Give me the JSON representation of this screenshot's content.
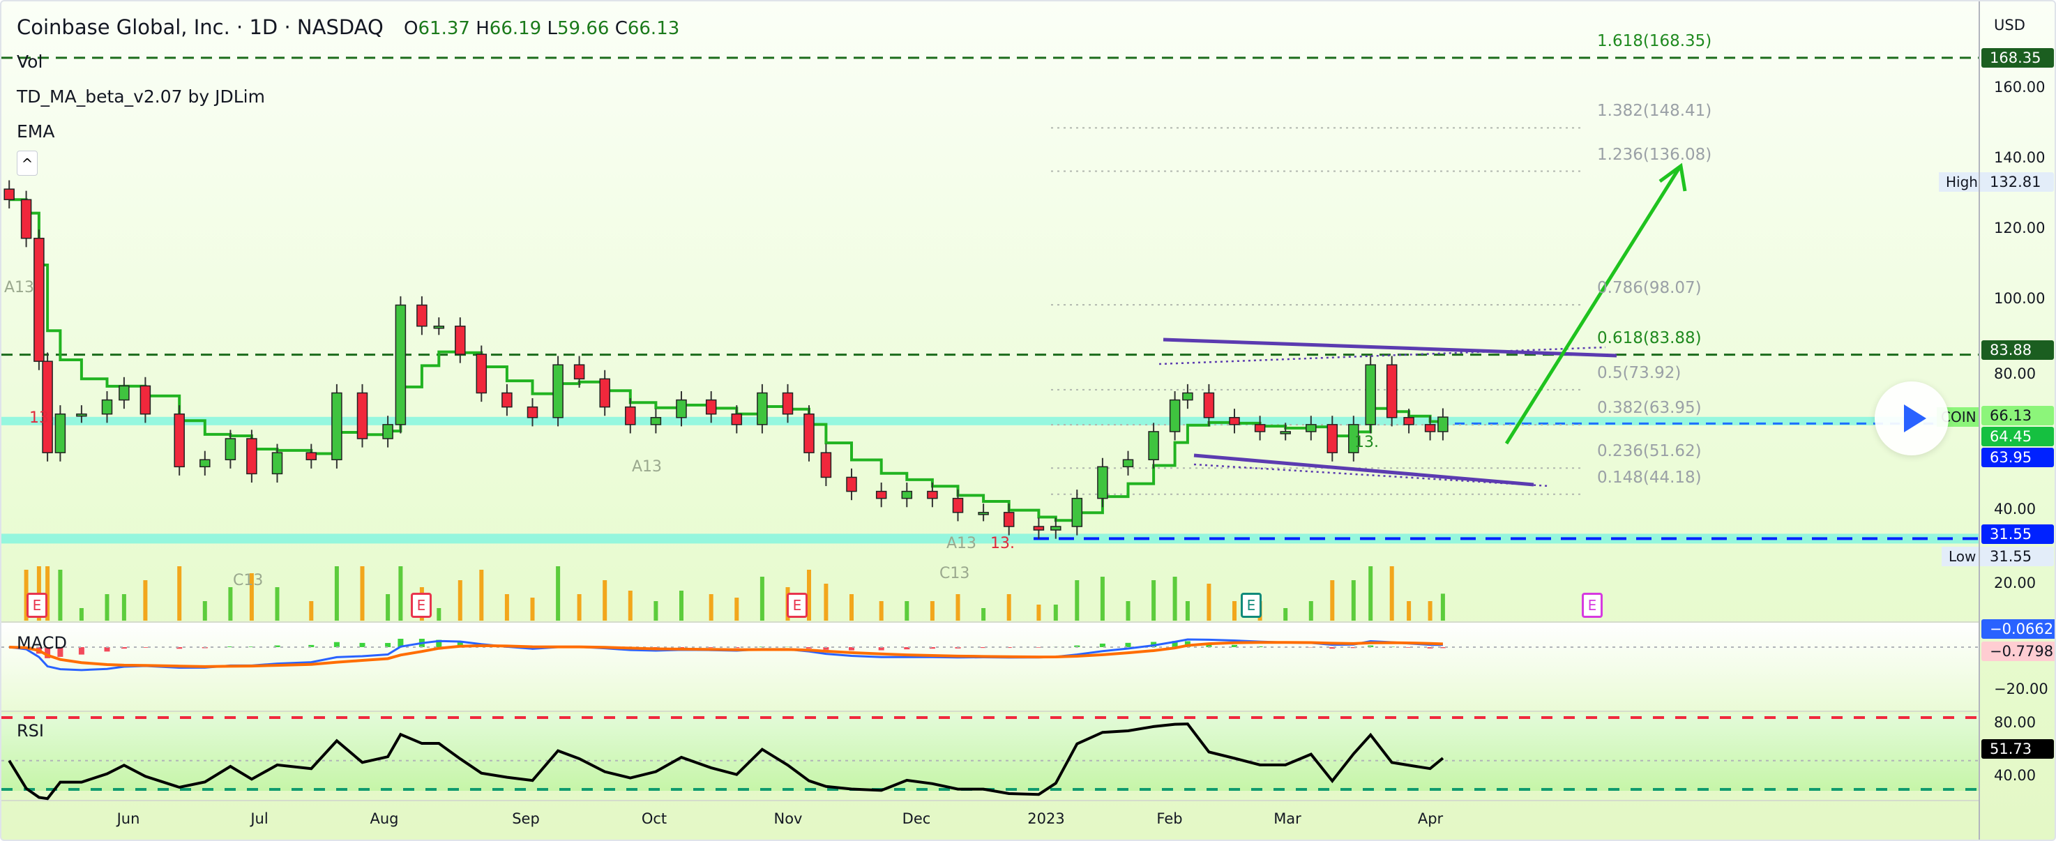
{
  "header": {
    "symbol_title": "Coinbase Global, Inc. · 1D · NASDAQ",
    "open_label": "O",
    "open": "61.37",
    "high_label": "H",
    "high": "66.19",
    "low_label": "L",
    "low": "59.66",
    "close_label": "C",
    "close": "66.13"
  },
  "indicators": {
    "vol": "Vol",
    "td": "TD_MA_beta_v2.07 by JDLim",
    "ema": "EMA",
    "macd": "MACD",
    "rsi": "RSI"
  },
  "price_axis": {
    "currency": "USD",
    "ticks": [
      "160.00",
      "140.00",
      "120.00",
      "100.00",
      "80.00",
      "40.00",
      "20.00"
    ],
    "tags": {
      "fib_top": "168.35",
      "high_label": "High",
      "high": "132.81",
      "fib_618": "83.88",
      "symbol": "COIN",
      "last": "66.13",
      "ema": "64.45",
      "fib_382": "63.95",
      "low_line": "31.55",
      "low_label": "Low",
      "low": "31.55"
    },
    "macd_tags": {
      "macd": "−0.0662",
      "signal": "−0.7798",
      "tick": "−20.00"
    },
    "rsi_tags": {
      "top": "80.00",
      "value": "51.73",
      "tick": "40.00"
    }
  },
  "fib_levels": [
    {
      "label": "1.618(168.35)",
      "price": 168.35,
      "strong": true
    },
    {
      "label": "1.382(148.41)",
      "price": 148.41
    },
    {
      "label": "1.236(136.08)",
      "price": 136.08
    },
    {
      "label": "0.786(98.07)",
      "price": 98.07
    },
    {
      "label": "0.618(83.88)",
      "price": 83.88,
      "strong": true
    },
    {
      "label": "0.5(73.92)",
      "price": 73.92
    },
    {
      "label": "0.382(63.95)",
      "price": 63.95
    },
    {
      "label": "0.236(51.62)",
      "price": 51.62
    },
    {
      "label": "0.148(44.18)",
      "price": 44.18
    }
  ],
  "earnings_marker": "E",
  "annotations": [
    "A13",
    "C13",
    "A13",
    "A13",
    "C13",
    "13.",
    "13.",
    "13."
  ],
  "colors": {
    "up": "#3fc43f",
    "down": "#f0283c",
    "ema": "#21b321",
    "fib_strong": "#1b6b1b",
    "channel": "#5b3bb0",
    "arrow": "#1ec31e",
    "macd": "#2962ff",
    "signal": "#ff6d00",
    "cyan": "#7ff5e0",
    "blue": "#0022ff"
  },
  "chart_data": {
    "type": "candlestick",
    "title": "Coinbase Global, Inc. · 1D · NASDAQ",
    "ylabel": "USD",
    "ylim": [
      10,
      175
    ],
    "x_ticks": [
      "Jun",
      "Jul",
      "Aug",
      "Sep",
      "Oct",
      "Nov",
      "Dec",
      "2023",
      "Feb",
      "Mar",
      "Apr"
    ],
    "closes": [
      [
        "2022-05-04",
        128
      ],
      [
        "2022-05-08",
        117
      ],
      [
        "2022-05-11",
        82
      ],
      [
        "2022-05-13",
        56
      ],
      [
        "2022-05-16",
        67
      ],
      [
        "2022-05-21",
        67
      ],
      [
        "2022-05-27",
        71
      ],
      [
        "2022-05-31",
        75
      ],
      [
        "2022-06-05",
        67
      ],
      [
        "2022-06-13",
        52
      ],
      [
        "2022-06-19",
        54
      ],
      [
        "2022-06-25",
        60
      ],
      [
        "2022-06-30",
        50
      ],
      [
        "2022-07-06",
        56
      ],
      [
        "2022-07-14",
        54
      ],
      [
        "2022-07-20",
        73
      ],
      [
        "2022-07-26",
        60
      ],
      [
        "2022-08-01",
        64
      ],
      [
        "2022-08-04",
        98
      ],
      [
        "2022-08-09",
        92
      ],
      [
        "2022-08-13",
        92
      ],
      [
        "2022-08-18",
        84
      ],
      [
        "2022-08-23",
        73
      ],
      [
        "2022-08-29",
        69
      ],
      [
        "2022-09-04",
        66
      ],
      [
        "2022-09-10",
        81
      ],
      [
        "2022-09-15",
        77
      ],
      [
        "2022-09-21",
        69
      ],
      [
        "2022-09-27",
        64
      ],
      [
        "2022-10-03",
        66
      ],
      [
        "2022-10-09",
        71
      ],
      [
        "2022-10-16",
        67
      ],
      [
        "2022-10-22",
        64
      ],
      [
        "2022-10-28",
        73
      ],
      [
        "2022-11-03",
        67
      ],
      [
        "2022-11-08",
        56
      ],
      [
        "2022-11-12",
        49
      ],
      [
        "2022-11-18",
        45
      ],
      [
        "2022-11-25",
        43
      ],
      [
        "2022-12-01",
        45
      ],
      [
        "2022-12-07",
        43
      ],
      [
        "2022-12-13",
        39
      ],
      [
        "2022-12-19",
        39
      ],
      [
        "2022-12-25",
        35
      ],
      [
        "2023-01-01",
        34
      ],
      [
        "2023-01-05",
        35
      ],
      [
        "2023-01-10",
        43
      ],
      [
        "2023-01-16",
        52
      ],
      [
        "2023-01-22",
        54
      ],
      [
        "2023-01-28",
        62
      ],
      [
        "2023-02-02",
        71
      ],
      [
        "2023-02-05",
        73
      ],
      [
        "2023-02-10",
        66
      ],
      [
        "2023-02-16",
        64
      ],
      [
        "2023-02-22",
        62
      ],
      [
        "2023-02-28",
        62
      ],
      [
        "2023-03-06",
        64
      ],
      [
        "2023-03-11",
        56
      ],
      [
        "2023-03-16",
        64
      ],
      [
        "2023-03-20",
        81
      ],
      [
        "2023-03-25",
        66
      ],
      [
        "2023-03-29",
        64
      ],
      [
        "2023-04-03",
        62
      ],
      [
        "2023-04-06",
        66.13
      ]
    ]
  }
}
